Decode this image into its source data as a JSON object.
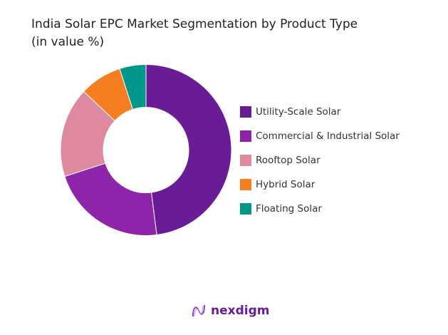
{
  "chart_data": {
    "type": "pie",
    "subtype": "donut",
    "title": "India Solar EPC Market Segmentation by Product Type",
    "subtitle": "(in value %)",
    "categories": [
      "Utility-Scale Solar",
      "Commercial & Industrial Solar",
      "Rooftop Solar",
      "Hybrid Solar",
      "Floating Solar"
    ],
    "values": [
      48,
      22,
      17,
      8,
      5
    ],
    "colors": [
      "#6a1b96",
      "#8e24aa",
      "#de89a0",
      "#f57f20",
      "#00968a"
    ],
    "legend_placement": "right"
  },
  "brand": {
    "name": "nexdigm"
  }
}
